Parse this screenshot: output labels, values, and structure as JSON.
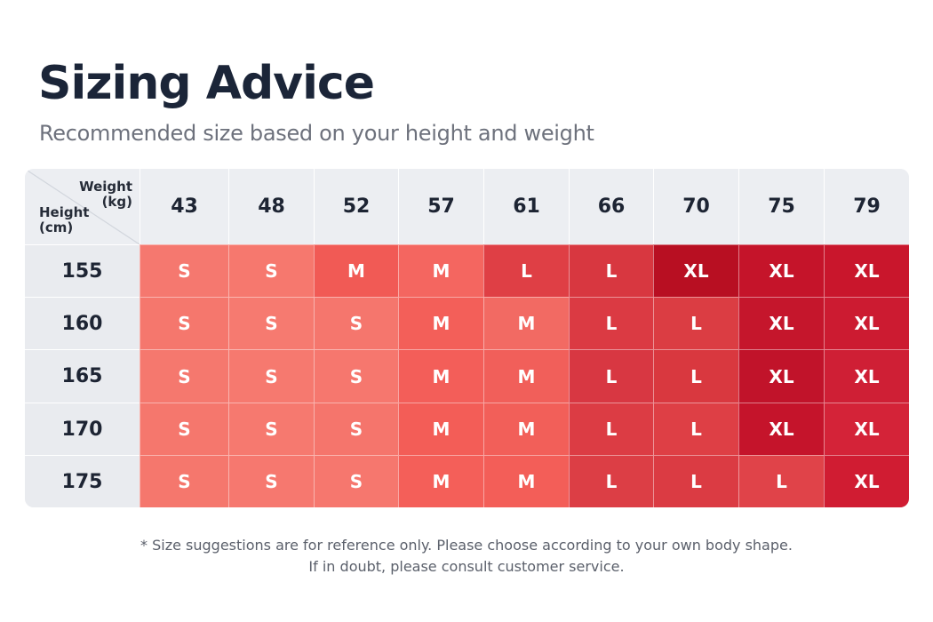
{
  "header": {
    "title": "Sizing Advice",
    "subtitle": "Recommended size based on your height and weight"
  },
  "table": {
    "corner": {
      "weight_label": "Weight",
      "weight_unit": "(kg)",
      "height_label": "Height",
      "height_unit": "(cm)"
    },
    "weights": [
      "43",
      "48",
      "52",
      "57",
      "61",
      "66",
      "70",
      "75",
      "79"
    ],
    "heights": [
      "155",
      "160",
      "165",
      "170",
      "175"
    ],
    "sizes": [
      [
        "S",
        "S",
        "M",
        "M",
        "L",
        "L",
        "XL",
        "XL",
        "XL"
      ],
      [
        "S",
        "S",
        "S",
        "M",
        "M",
        "L",
        "L",
        "XL",
        "XL"
      ],
      [
        "S",
        "S",
        "S",
        "M",
        "M",
        "L",
        "L",
        "XL",
        "XL"
      ],
      [
        "S",
        "S",
        "S",
        "M",
        "M",
        "L",
        "L",
        "XL",
        "XL"
      ],
      [
        "S",
        "S",
        "S",
        "M",
        "M",
        "L",
        "L",
        "L",
        "XL"
      ]
    ],
    "colors": [
      [
        "#f5786f",
        "#f6786e",
        "#f15a55",
        "#f46660",
        "#df3f45",
        "#d83740",
        "#b80f22",
        "#c5142a",
        "#c9162c"
      ],
      [
        "#f5776d",
        "#f67a70",
        "#f5766d",
        "#f35f59",
        "#f26a63",
        "#db3a43",
        "#db3d43",
        "#c5162c",
        "#cc1b31"
      ],
      [
        "#f5786e",
        "#f6796f",
        "#f6776e",
        "#f35e59",
        "#f15f5a",
        "#d83742",
        "#d9383f",
        "#c1132a",
        "#cf1f35"
      ],
      [
        "#f5776d",
        "#f6796f",
        "#f5756c",
        "#f35d57",
        "#f25f59",
        "#dc3c44",
        "#de3f45",
        "#c5142b",
        "#d42338"
      ],
      [
        "#f5776d",
        "#f6786f",
        "#f6776e",
        "#f45f59",
        "#f35e58",
        "#dc3e45",
        "#db3b43",
        "#e04349",
        "#d01c32"
      ]
    ]
  },
  "footnote": {
    "line1": "* Size suggestions are for reference only. Please choose according to your own body shape.",
    "line2": "If in doubt, please consult customer service."
  }
}
